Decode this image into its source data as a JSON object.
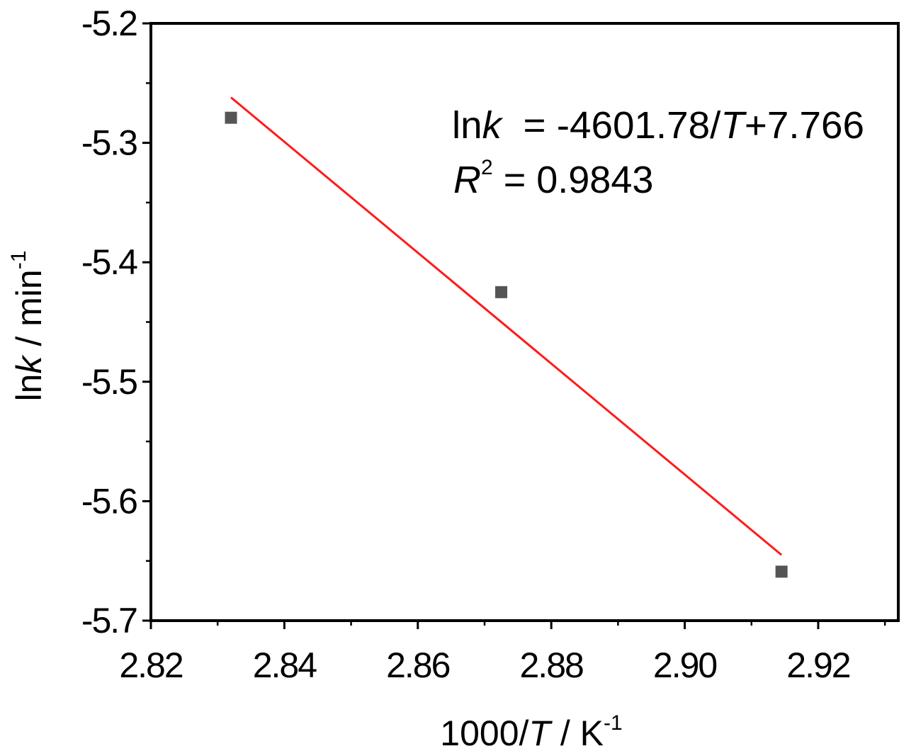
{
  "chart_data": {
    "type": "scatter",
    "title": "",
    "xlim": [
      2.82,
      2.932
    ],
    "ylim": [
      -5.7,
      -5.2
    ],
    "xticks": [
      "2.82",
      "2.84",
      "2.86",
      "2.88",
      "2.90",
      "2.92"
    ],
    "xtick_values": [
      2.82,
      2.84,
      2.86,
      2.88,
      2.9,
      2.92
    ],
    "yticks": [
      "-5.2",
      "-5.3",
      "-5.4",
      "-5.5",
      "-5.6",
      "-5.7"
    ],
    "ytick_values": [
      -5.2,
      -5.3,
      -5.4,
      -5.5,
      -5.6,
      -5.7
    ],
    "xlabel": {
      "prefix": "1000/",
      "var": "T",
      "mid": " / K",
      "sup": "-1"
    },
    "ylabel": {
      "prefix": "ln",
      "var": "k",
      "mid": " / min",
      "sup": "-1"
    },
    "points": [
      {
        "x": 2.832,
        "y": -5.279
      },
      {
        "x": 2.8725,
        "y": -5.425
      },
      {
        "x": 2.9145,
        "y": -5.659
      }
    ],
    "fit_line": {
      "color": "#ff1a1a",
      "x": [
        2.832,
        2.9145
      ],
      "y": [
        -5.262,
        -5.645
      ]
    },
    "marker_color": "#555555",
    "annotation": {
      "eq_prefix": "ln",
      "eq_var": "k",
      "eq_mid": "  = -4601.78/",
      "eq_var2": "T",
      "eq_suffix": "+7.766",
      "r2_var": "R",
      "r2_sup": "2",
      "r2_value": " = 0.9843"
    },
    "grid": false,
    "legend": "none"
  }
}
